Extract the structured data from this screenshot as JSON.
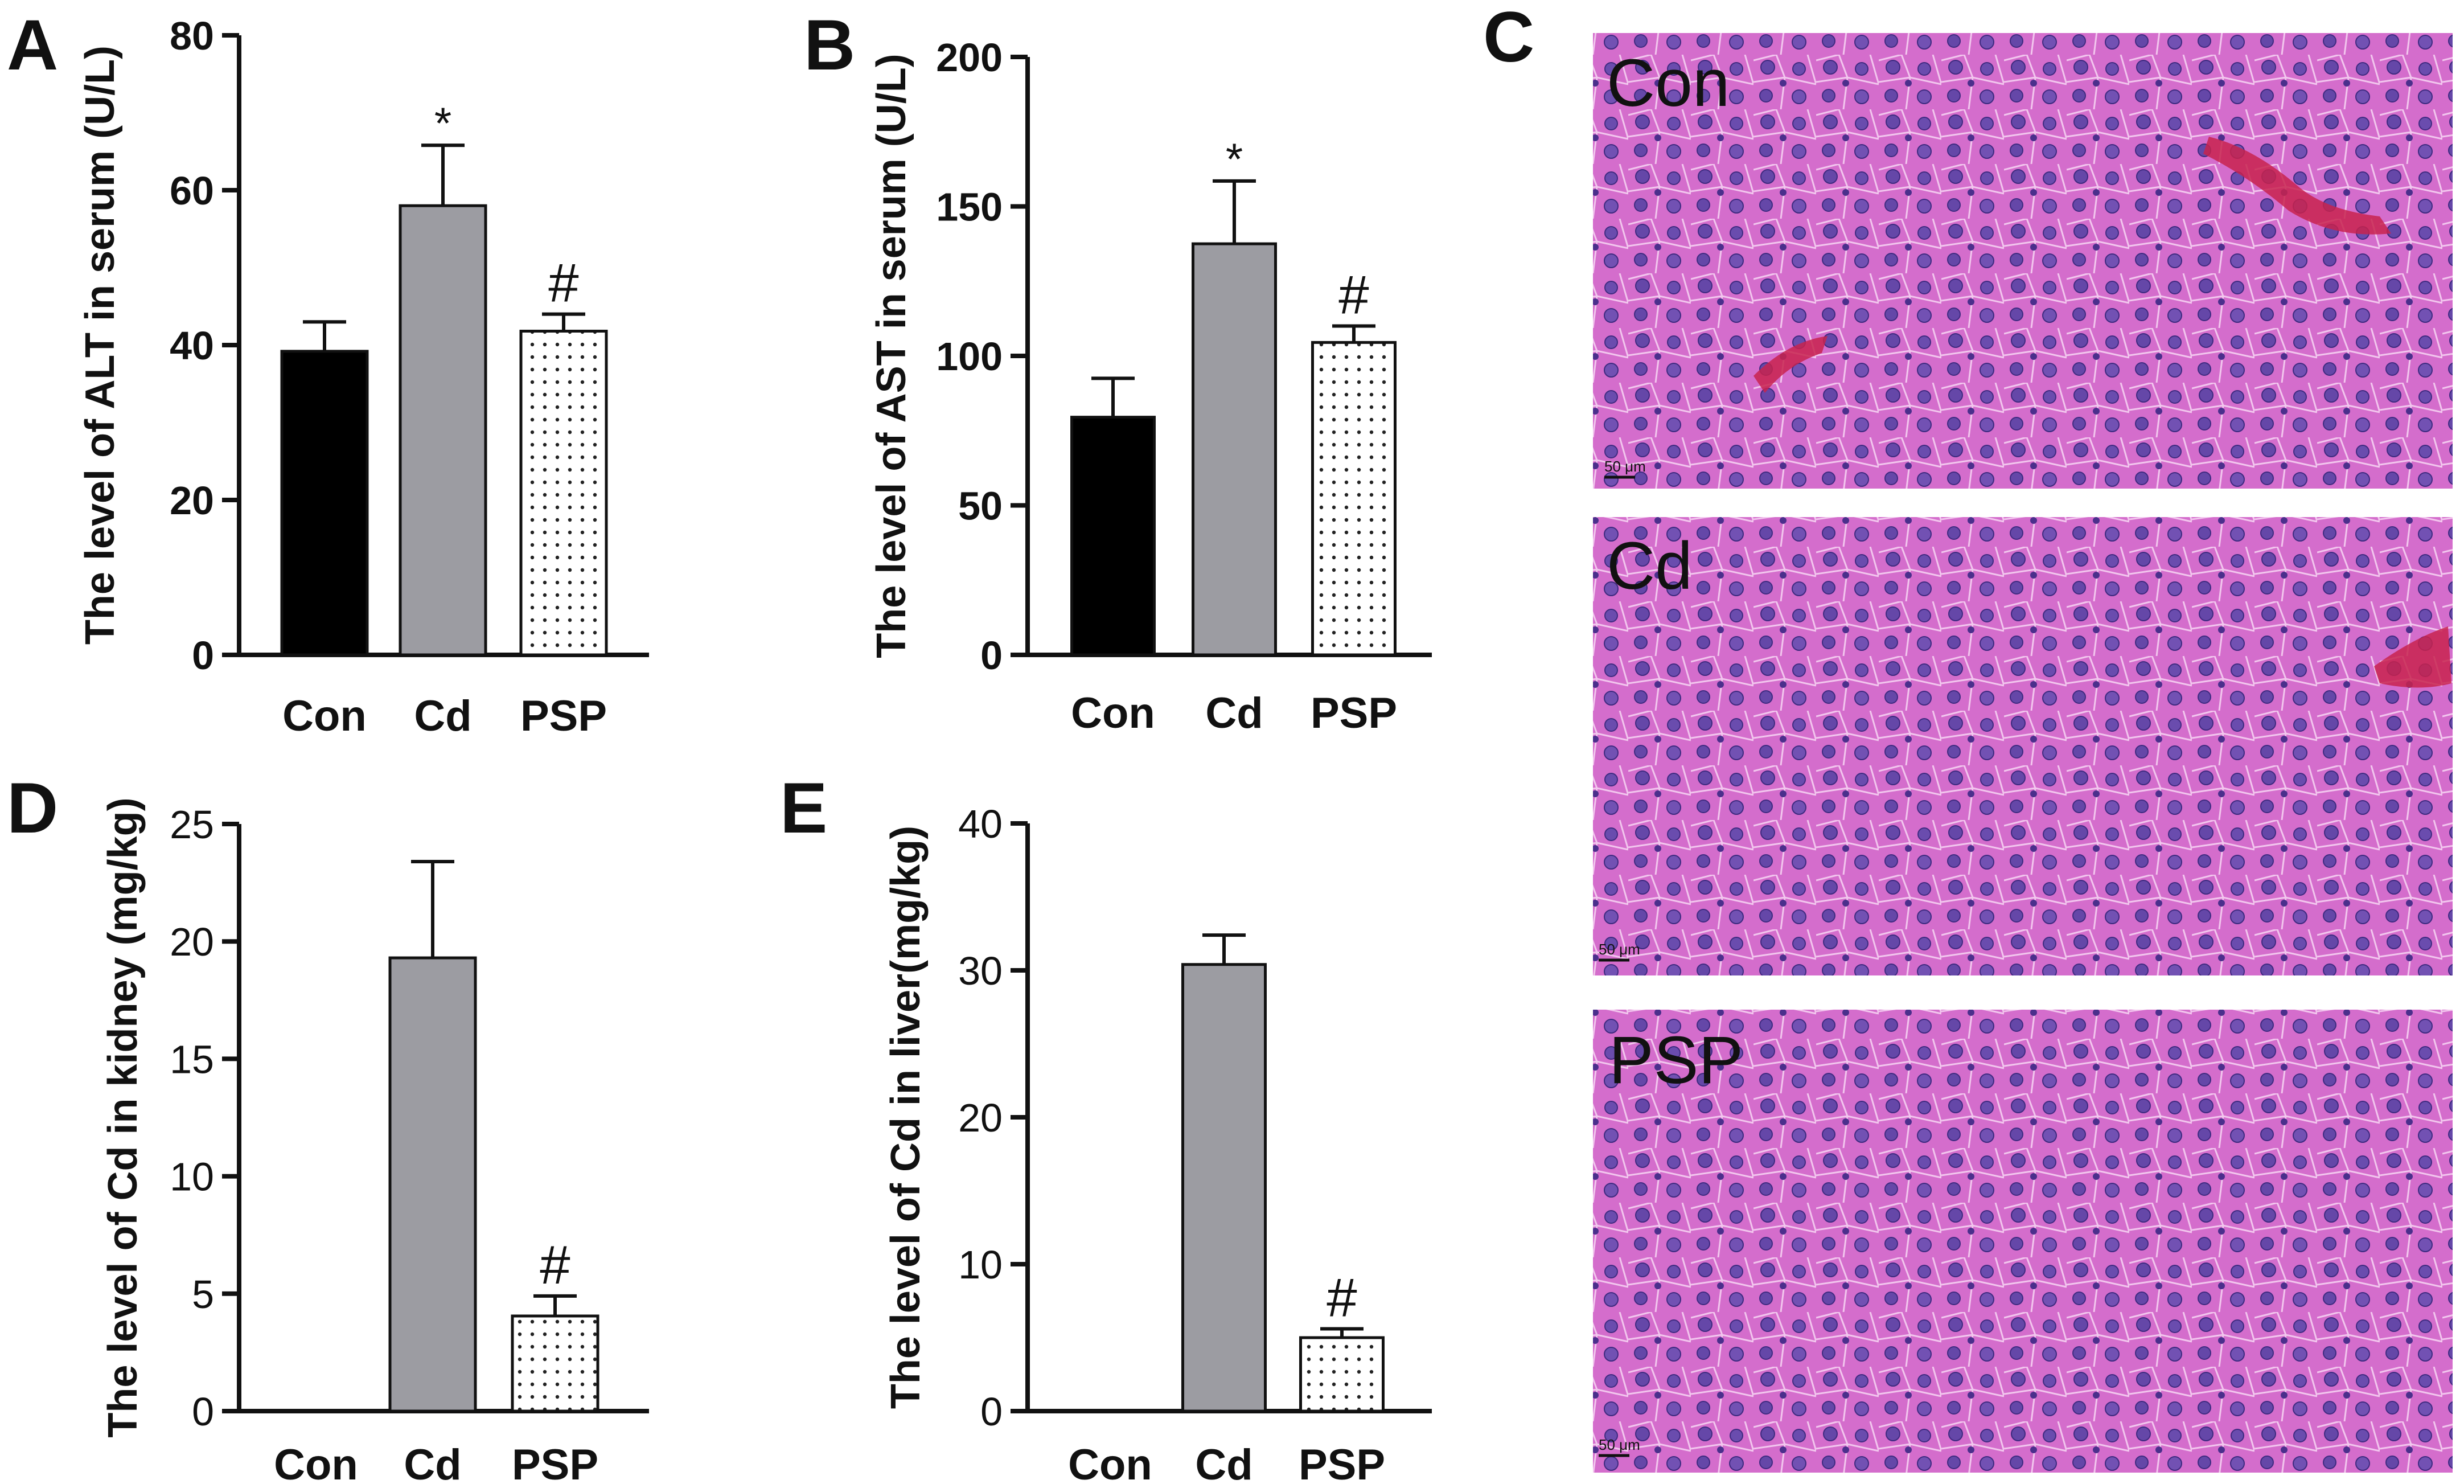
{
  "panel_letters": {
    "A": "A",
    "B": "B",
    "C": "C",
    "D": "D",
    "E": "E"
  },
  "colors": {
    "con_bar": "#000000",
    "cd_bar": "#9c9ca2",
    "psp_bar": "#ffffff",
    "tissue_pink": "#cf62c8",
    "nucleus": "#5a3fa0",
    "blood": "#c8234e"
  },
  "chart_data": [
    {
      "panel": "A",
      "type": "bar",
      "categories": [
        "Con",
        "Cd",
        "PSP"
      ],
      "values": [
        39.2,
        58.0,
        41.8
      ],
      "errors": [
        3.8,
        7.8,
        2.2
      ],
      "annotations": [
        "",
        "*",
        "#"
      ],
      "ylabel": "The level of ALT in serum (U/L)",
      "ylim": [
        0,
        80
      ],
      "yticks": [
        0,
        20,
        40,
        60,
        80
      ],
      "ytick_labels": [
        "0",
        "20",
        "40",
        "60",
        "80"
      ],
      "bar_styles": [
        "solid-black",
        "solid-gray",
        "dotted-white"
      ]
    },
    {
      "panel": "B",
      "type": "bar",
      "categories": [
        "Con",
        "Cd",
        "PSP"
      ],
      "values": [
        79.5,
        137.5,
        104.5
      ],
      "errors": [
        13.0,
        21.0,
        5.5
      ],
      "annotations": [
        "",
        "*",
        "#"
      ],
      "ylabel": "The level of AST in serum (U/L)",
      "ylim": [
        0,
        200
      ],
      "yticks": [
        0,
        50,
        100,
        150,
        200
      ],
      "ytick_labels": [
        "0",
        "50",
        "100",
        "150",
        "200"
      ],
      "bar_styles": [
        "solid-black",
        "solid-gray",
        "dotted-white"
      ]
    },
    {
      "panel": "D",
      "type": "bar",
      "categories": [
        "Con",
        "Cd",
        "PSP"
      ],
      "values": [
        0,
        19.3,
        4.05
      ],
      "errors": [
        0,
        4.1,
        0.85
      ],
      "annotations": [
        "",
        "",
        "#"
      ],
      "ylabel": "The level of Cd in kidney (mg/kg)",
      "ylim": [
        0,
        25
      ],
      "yticks": [
        0,
        5,
        10,
        15,
        20,
        25
      ],
      "ytick_labels": [
        "0",
        "5",
        "10",
        "15",
        "20",
        "25"
      ],
      "bar_styles": [
        "solid-black",
        "solid-gray",
        "dotted-white"
      ]
    },
    {
      "panel": "E",
      "type": "bar",
      "categories": [
        "Con",
        "Cd",
        "PSP"
      ],
      "values": [
        0,
        30.4,
        5.0
      ],
      "errors": [
        0,
        2.0,
        0.6
      ],
      "annotations": [
        "",
        "",
        "#"
      ],
      "ylabel": "The level of Cd in liver(mg/kg)",
      "ylim": [
        0,
        40
      ],
      "yticks": [
        0,
        10,
        20,
        30,
        40
      ],
      "ytick_labels": [
        "0",
        "10",
        "20",
        "30",
        "40"
      ],
      "bar_styles": [
        "solid-black",
        "solid-gray",
        "dotted-white"
      ]
    }
  ],
  "micrographs": {
    "panel": "C",
    "images": [
      {
        "label": "Con",
        "scale_bar": "50 μm"
      },
      {
        "label": "Cd",
        "scale_bar": "50 μm"
      },
      {
        "label": "PSP",
        "scale_bar": "50 μm"
      }
    ]
  }
}
